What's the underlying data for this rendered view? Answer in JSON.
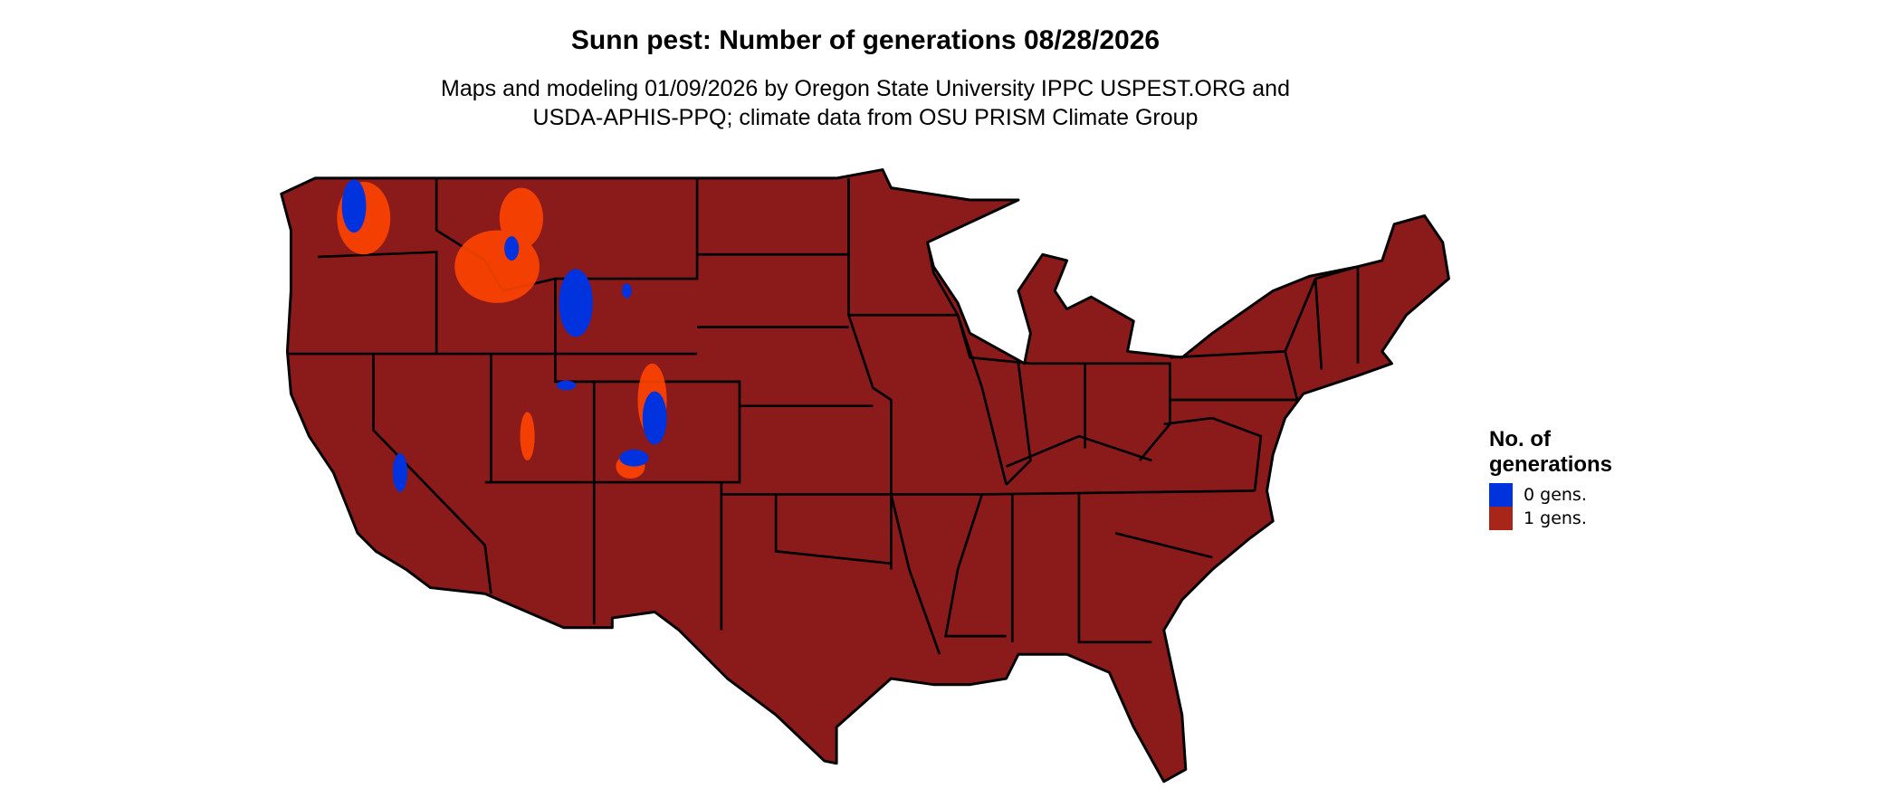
{
  "title": "Sunn pest: Number of generations 08/28/2026",
  "subtitle_line1": "Maps and modeling 01/09/2026 by Oregon State University IPPC USPEST.ORG and",
  "subtitle_line2": "USDA-APHIS-PPQ; climate data from OSU PRISM Climate Group",
  "legend": {
    "title_line1": "No. of",
    "title_line2": "generations",
    "items": [
      {
        "label": "0 gens.",
        "color": "#0033dd"
      },
      {
        "label": "1 gens.",
        "color": "#a8251a"
      }
    ]
  },
  "colors": {
    "land": "#8b1a1a",
    "border": "#000000",
    "mountain_highlight": "#ff4400",
    "zero_gens": "#0033dd"
  }
}
